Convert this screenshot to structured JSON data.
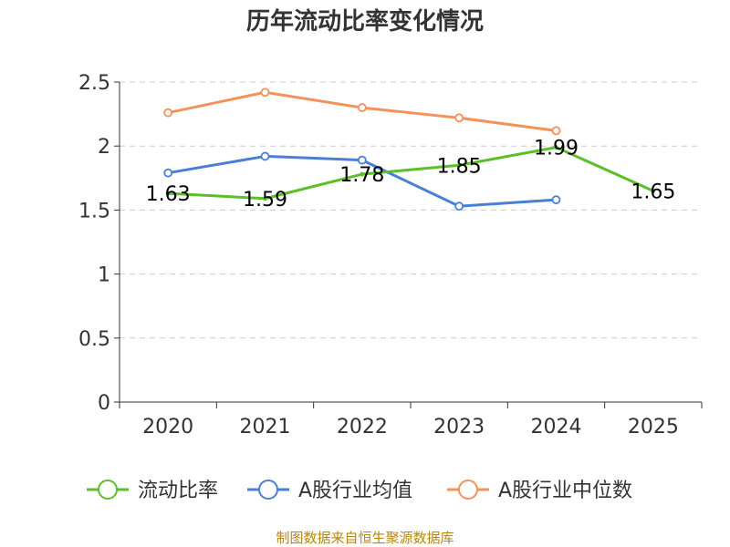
{
  "chart_data": {
    "type": "line",
    "title": "历年流动比率变化情况",
    "categories": [
      "2020",
      "2021",
      "2022",
      "2023",
      "2024",
      "2025"
    ],
    "ylim": [
      0,
      2.5
    ],
    "yticks": [
      "0",
      "0.5",
      "1",
      "1.5",
      "2",
      "2.5"
    ],
    "ytick_values": [
      0,
      0.5,
      1,
      1.5,
      2,
      2.5
    ],
    "grid": true,
    "legend_position": "bottom",
    "series": [
      {
        "name": "流动比率",
        "color": "#5cbf2a",
        "values": [
          1.63,
          1.59,
          1.78,
          1.85,
          1.99,
          1.65
        ],
        "labels": [
          "1.63",
          "1.59",
          "1.78",
          "1.85",
          "1.99",
          "1.65"
        ]
      },
      {
        "name": "A股行业均值",
        "color": "#4a7fd6",
        "values": [
          1.79,
          1.92,
          1.89,
          1.53,
          1.58,
          null
        ]
      },
      {
        "name": "A股行业中位数",
        "color": "#f5915a",
        "values": [
          2.26,
          2.42,
          2.3,
          2.22,
          2.12,
          null
        ]
      }
    ]
  },
  "source_text": "制图数据来自恒生聚源数据库"
}
